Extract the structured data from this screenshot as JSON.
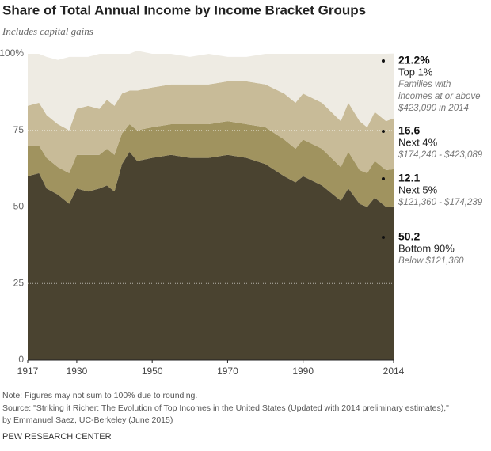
{
  "chart_data": {
    "type": "stacked-area",
    "title": "Share of Total Annual Income by Income Bracket Groups",
    "subtitle": "Includes capital gains",
    "x": [
      1917,
      1920,
      1922,
      1925,
      1928,
      1930,
      1933,
      1936,
      1938,
      1940,
      1942,
      1944,
      1946,
      1950,
      1955,
      1960,
      1965,
      1970,
      1975,
      1980,
      1985,
      1988,
      1990,
      1995,
      2000,
      2002,
      2005,
      2007,
      2009,
      2012,
      2014
    ],
    "xlim": [
      1917,
      2014
    ],
    "xticks": [
      1917,
      1930,
      1950,
      1970,
      1990,
      2014
    ],
    "ylim": [
      0,
      100
    ],
    "yticks": [
      0,
      25,
      50,
      75,
      {
        "value": 100,
        "label": "100%"
      }
    ],
    "grid": true,
    "series": [
      {
        "name": "Bottom 90%",
        "color": "#4a4330",
        "note_lines": [
          "Below $121,360"
        ],
        "values": [
          60,
          61,
          56,
          54,
          51,
          56,
          55,
          56,
          57,
          55,
          64,
          68,
          65,
          66,
          67,
          66,
          66,
          67,
          66,
          64,
          60,
          58,
          60,
          57,
          52,
          56,
          51,
          50,
          53,
          50,
          50.2
        ]
      },
      {
        "name": "Next 5%",
        "color": "#a0935f",
        "note_lines": [
          "$121,360 - $174,239"
        ],
        "values": [
          10,
          9,
          10,
          9,
          10,
          11,
          12,
          11,
          12,
          12,
          10,
          9,
          10,
          10,
          10,
          11,
          11,
          11,
          11,
          12,
          12,
          11,
          12,
          12,
          11,
          12,
          11,
          11,
          12,
          12,
          12.1
        ]
      },
      {
        "name": "Next 4%",
        "color": "#c8bb98",
        "note_lines": [
          "$174,240 - $423,089"
        ],
        "values": [
          13,
          14,
          14,
          14,
          14,
          15,
          16,
          15,
          16,
          16,
          13,
          11,
          13,
          13,
          13,
          13,
          13,
          13,
          14,
          14,
          15,
          15,
          15,
          15,
          15,
          16,
          16,
          15,
          16,
          16,
          16.6
        ]
      },
      {
        "name": "Top 1%",
        "color": "#eeebe3",
        "note_lines": [
          "Families with",
          "incomes at or above",
          "$423,090 in 2014"
        ],
        "values": [
          17,
          16,
          19,
          21,
          24,
          17,
          16,
          18,
          15,
          17,
          13,
          12,
          13,
          11,
          10,
          9,
          10,
          8,
          8,
          10,
          13,
          16,
          13,
          16,
          22,
          16,
          22,
          24,
          19,
          22,
          21.2
        ],
        "value_labels": [
          null,
          null,
          null,
          null,
          null,
          null,
          null,
          null,
          null,
          null,
          null,
          null,
          null,
          null,
          null,
          null,
          null,
          null,
          null,
          null,
          null,
          null,
          null,
          null,
          null,
          null,
          null,
          null,
          null,
          null,
          "21.2%"
        ]
      }
    ],
    "footnotes": [
      "Note: Figures may not sum to 100% due to rounding.",
      "Source: \"Striking it Richer: The Evolution of Top Incomes in the United States (Updated with 2014 preliminary estimates),\"",
      "by Emmanuel Saez, UC-Berkeley (June 2015)"
    ],
    "credit": "PEW RESEARCH CENTER"
  }
}
